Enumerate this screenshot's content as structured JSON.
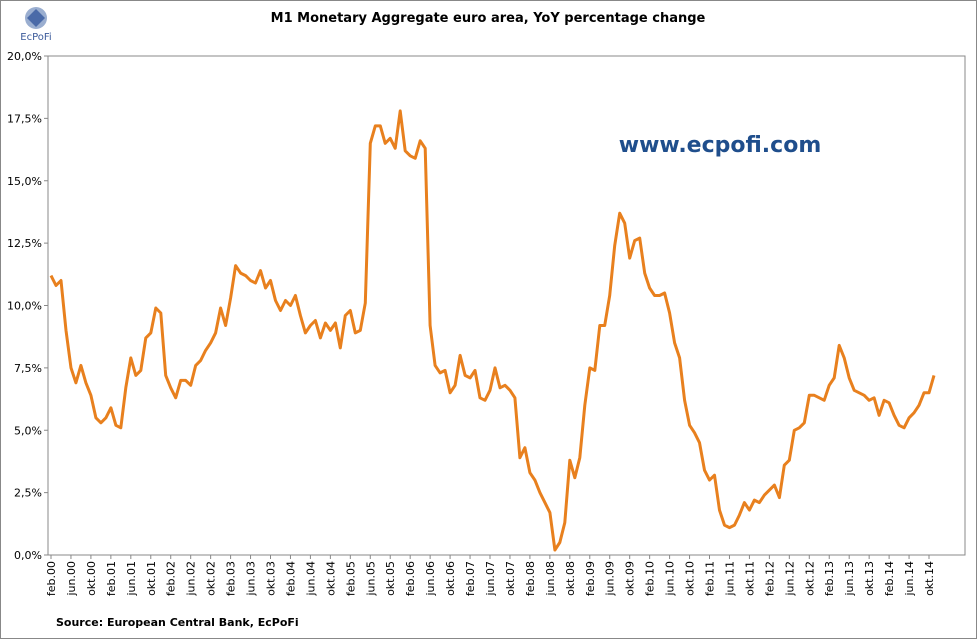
{
  "brand": "EcPoFi",
  "chart_data": {
    "type": "line",
    "title": "M1 Monetary Aggregate euro area, YoY percentage change",
    "annotation": "www.ecpofi.com",
    "source": "Source: European  Central Bank,  EcPoFi",
    "categories": [
      "feb.00",
      null,
      null,
      null,
      "jun.00",
      null,
      null,
      null,
      "okt.00",
      null,
      null,
      null,
      "feb.01",
      null,
      null,
      null,
      "jun.01",
      null,
      null,
      null,
      "okt.01",
      null,
      null,
      null,
      "feb.02",
      null,
      null,
      null,
      "jun.02",
      null,
      null,
      null,
      "okt.02",
      null,
      null,
      null,
      "feb.03",
      null,
      null,
      null,
      "jun.03",
      null,
      null,
      null,
      "okt.03",
      null,
      null,
      null,
      "feb.04",
      null,
      null,
      null,
      "jun.04",
      null,
      null,
      null,
      "okt.04",
      null,
      null,
      null,
      "feb.05",
      null,
      null,
      null,
      "jun.05",
      null,
      null,
      null,
      "okt.05",
      null,
      null,
      null,
      "feb.06",
      null,
      null,
      null,
      "jun.06",
      null,
      null,
      null,
      "okt.06",
      null,
      null,
      null,
      "feb.07",
      null,
      null,
      null,
      "jun.07",
      null,
      null,
      null,
      "okt.07",
      null,
      null,
      null,
      "feb.08",
      null,
      null,
      null,
      "jun.08",
      null,
      null,
      null,
      "okt.08",
      null,
      null,
      null,
      "feb.09",
      null,
      null,
      null,
      "jun.09",
      null,
      null,
      null,
      "okt.09",
      null,
      null,
      null,
      "feb.10",
      null,
      null,
      null,
      "jun.10",
      null,
      null,
      null,
      "okt.10",
      null,
      null,
      null,
      "feb.11",
      null,
      null,
      null,
      "jun.11",
      null,
      null,
      null,
      "okt.11",
      null,
      null,
      null,
      "feb.12",
      null,
      null,
      null,
      "jun.12",
      null,
      null,
      null,
      "okt.12",
      null,
      null,
      null,
      "feb.13",
      null,
      null,
      null,
      "jun.13",
      null,
      null,
      null,
      "okt.13",
      null,
      null,
      null,
      "feb.14",
      null,
      null,
      null,
      "jun.14",
      null,
      null,
      null,
      "okt.14",
      null
    ],
    "series": [
      {
        "name": "M1",
        "color": "#e8801e",
        "values": [
          11.2,
          10.8,
          11.0,
          9.0,
          7.5,
          6.9,
          7.6,
          6.9,
          6.4,
          5.5,
          5.3,
          5.5,
          5.9,
          5.2,
          5.1,
          6.7,
          7.9,
          7.2,
          7.4,
          8.7,
          8.9,
          9.9,
          9.7,
          7.2,
          6.7,
          6.3,
          7.0,
          7.0,
          6.8,
          7.6,
          7.8,
          8.2,
          8.5,
          8.9,
          9.9,
          9.2,
          10.3,
          11.6,
          11.3,
          11.2,
          11.0,
          10.9,
          11.4,
          10.7,
          11.0,
          10.2,
          9.8,
          10.2,
          10.0,
          10.4,
          9.6,
          8.9,
          9.2,
          9.4,
          8.7,
          9.3,
          9.0,
          9.3,
          8.3,
          9.6,
          9.8,
          8.9,
          9.0,
          10.1,
          16.5,
          17.2,
          17.2,
          16.5,
          16.7,
          16.3,
          17.8,
          16.2,
          16.0,
          15.9,
          16.6,
          16.3,
          9.2,
          7.6,
          7.3,
          7.4,
          6.5,
          6.8,
          8.0,
          7.2,
          7.1,
          7.4,
          6.3,
          6.2,
          6.6,
          7.5,
          6.7,
          6.8,
          6.6,
          6.3,
          3.9,
          4.3,
          3.3,
          3.0,
          2.5,
          2.1,
          1.7,
          0.2,
          0.5,
          1.3,
          3.8,
          3.1,
          3.9,
          6.0,
          7.5,
          7.4,
          9.2,
          9.2,
          10.4,
          12.4,
          13.7,
          13.3,
          11.9,
          12.6,
          12.7,
          11.3,
          10.7,
          10.4,
          10.4,
          10.5,
          9.7,
          8.5,
          7.9,
          6.2,
          5.2,
          4.9,
          4.5,
          3.4,
          3.0,
          3.2,
          1.8,
          1.2,
          1.1,
          1.2,
          1.6,
          2.1,
          1.8,
          2.2,
          2.1,
          2.4,
          2.6,
          2.8,
          2.3,
          3.6,
          3.8,
          5.0,
          5.1,
          5.3,
          6.4,
          6.4,
          6.3,
          6.2,
          6.8,
          7.1,
          8.4,
          7.9,
          7.1,
          6.6,
          6.5,
          6.4,
          6.2,
          6.3,
          5.6,
          6.2,
          6.1,
          5.6,
          5.2,
          5.1,
          5.5,
          5.7,
          6.0,
          6.5,
          6.5,
          7.2
        ]
      }
    ],
    "ylim": [
      0,
      20
    ],
    "yticks": [
      {
        "value": 0,
        "label": "0,0%"
      },
      {
        "value": 2.5,
        "label": "2,5%"
      },
      {
        "value": 5,
        "label": "5,0%"
      },
      {
        "value": 7.5,
        "label": "7,5%"
      },
      {
        "value": 10,
        "label": "10,0%"
      },
      {
        "value": 12.5,
        "label": "12,5%"
      },
      {
        "value": 15,
        "label": "15,0%"
      },
      {
        "value": 17.5,
        "label": "17,5%"
      },
      {
        "value": 20,
        "label": "20,0%"
      }
    ],
    "grid": false
  }
}
